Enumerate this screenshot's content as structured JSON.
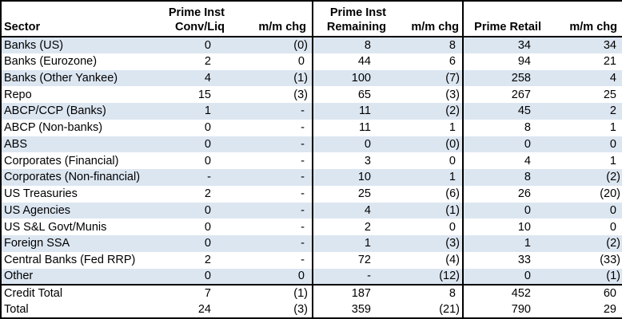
{
  "table": {
    "header": {
      "sector": "Sector",
      "group1_line1": "Prime Inst",
      "group1_line2": "Conv/Liq",
      "mm_chg_1": "m/m chg",
      "group2_line1": "Prime Inst",
      "group2_line2": "Remaining",
      "mm_chg_2": "m/m chg",
      "prime_retail": "Prime Retail",
      "mm_chg_3": "m/m chg"
    },
    "rows": [
      [
        "Banks (US)",
        "0",
        "(0)",
        "8",
        "8",
        "34",
        "34"
      ],
      [
        "Banks (Eurozone)",
        "2",
        "0",
        "44",
        "6",
        "94",
        "21"
      ],
      [
        "Banks (Other Yankee)",
        "4",
        "(1)",
        "100",
        "(7)",
        "258",
        "4"
      ],
      [
        "Repo",
        "15",
        "(3)",
        "65",
        "(3)",
        "267",
        "25"
      ],
      [
        "ABCP/CCP (Banks)",
        "1",
        "-",
        "11",
        "(2)",
        "45",
        "2"
      ],
      [
        "ABCP (Non-banks)",
        "0",
        "-",
        "11",
        "1",
        "8",
        "1"
      ],
      [
        "ABS",
        "0",
        "-",
        "0",
        "(0)",
        "0",
        "0"
      ],
      [
        "Corporates (Financial)",
        "0",
        "-",
        "3",
        "0",
        "4",
        "1"
      ],
      [
        "Corporates (Non-financial)",
        "-",
        "-",
        "10",
        "1",
        "8",
        "(2)"
      ],
      [
        "US Treasuries",
        "2",
        "-",
        "25",
        "(6)",
        "26",
        "(20)"
      ],
      [
        "US Agencies",
        "0",
        "-",
        "4",
        "(1)",
        "0",
        "0"
      ],
      [
        "US S&L Govt/Munis",
        "0",
        "-",
        "2",
        "0",
        "10",
        "0"
      ],
      [
        "Foreign SSA",
        "0",
        "-",
        "1",
        "(3)",
        "1",
        "(2)"
      ],
      [
        "Central Banks (Fed RRP)",
        "2",
        "-",
        "72",
        "(4)",
        "33",
        "(33)"
      ],
      [
        "Other",
        "0",
        "0",
        "-",
        "(12)",
        "0",
        "(1)"
      ]
    ],
    "total_rows": [
      [
        "Credit Total",
        "7",
        "(1)",
        "187",
        "8",
        "452",
        "60"
      ],
      [
        "Total",
        "24",
        "(3)",
        "359",
        "(21)",
        "790",
        "29"
      ]
    ]
  },
  "colors": {
    "stripe": "#dce6f1",
    "border": "#000000",
    "background": "#ffffff",
    "text": "#000000"
  },
  "chart_data": {
    "type": "table",
    "columns": [
      "Sector",
      "Prime Inst Conv/Liq",
      "m/m chg",
      "Prime Inst Remaining",
      "m/m chg",
      "Prime Retail",
      "m/m chg"
    ],
    "rows": [
      [
        "Banks (US)",
        "0",
        "(0)",
        "8",
        "8",
        "34",
        "34"
      ],
      [
        "Banks (Eurozone)",
        "2",
        "0",
        "44",
        "6",
        "94",
        "21"
      ],
      [
        "Banks (Other Yankee)",
        "4",
        "(1)",
        "100",
        "(7)",
        "258",
        "4"
      ],
      [
        "Repo",
        "15",
        "(3)",
        "65",
        "(3)",
        "267",
        "25"
      ],
      [
        "ABCP/CCP (Banks)",
        "1",
        "-",
        "11",
        "(2)",
        "45",
        "2"
      ],
      [
        "ABCP (Non-banks)",
        "0",
        "-",
        "11",
        "1",
        "8",
        "1"
      ],
      [
        "ABS",
        "0",
        "-",
        "0",
        "(0)",
        "0",
        "0"
      ],
      [
        "Corporates (Financial)",
        "0",
        "-",
        "3",
        "0",
        "4",
        "1"
      ],
      [
        "Corporates (Non-financial)",
        "-",
        "-",
        "10",
        "1",
        "8",
        "(2)"
      ],
      [
        "US Treasuries",
        "2",
        "-",
        "25",
        "(6)",
        "26",
        "(20)"
      ],
      [
        "US Agencies",
        "0",
        "-",
        "4",
        "(1)",
        "0",
        "0"
      ],
      [
        "US S&L Govt/Munis",
        "0",
        "-",
        "2",
        "0",
        "10",
        "0"
      ],
      [
        "Foreign SSA",
        "0",
        "-",
        "1",
        "(3)",
        "1",
        "(2)"
      ],
      [
        "Central Banks (Fed RRP)",
        "2",
        "-",
        "72",
        "(4)",
        "33",
        "(33)"
      ],
      [
        "Other",
        "0",
        "0",
        "-",
        "(12)",
        "0",
        "(1)"
      ],
      [
        "Credit Total",
        "7",
        "(1)",
        "187",
        "8",
        "452",
        "60"
      ],
      [
        "Total",
        "24",
        "(3)",
        "359",
        "(21)",
        "790",
        "29"
      ]
    ],
    "notes": "Negative values shown in parentheses; dash means no value. Alternating light-blue row shading; bold Credit Total and Total rows."
  }
}
